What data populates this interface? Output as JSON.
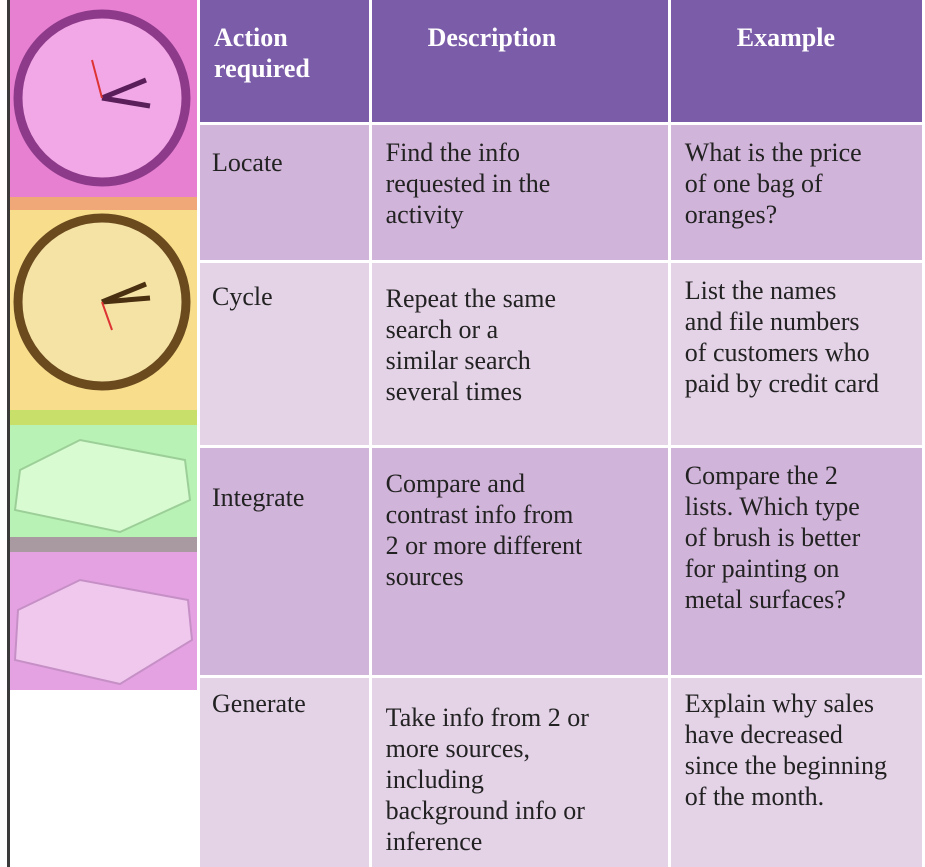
{
  "table": {
    "header": [
      [
        "Action",
        "required"
      ],
      [
        "Description"
      ],
      [
        "Example"
      ]
    ],
    "rows": [
      [
        [
          "Locate"
        ],
        [
          "Find the info",
          "requested in the",
          "activity"
        ],
        [
          "What is the price",
          "of one bag of",
          "oranges?"
        ]
      ],
      [
        [
          "Cycle"
        ],
        [
          "Repeat the same",
          "search or a",
          "similar search",
          "several times"
        ],
        [
          "List the names",
          "and file numbers",
          "of customers who",
          "paid by credit card"
        ]
      ],
      [
        [
          "Integrate"
        ],
        [
          "Compare and",
          "contrast info from",
          "2 or more different",
          "sources"
        ],
        [
          "Compare the 2",
          "lists. Which type",
          "of brush is better",
          "for painting on",
          "metal surfaces?"
        ]
      ],
      [
        [
          "Generate"
        ],
        [
          "Take info from 2 or",
          "more sources,",
          "including",
          "background info or",
          "inference"
        ],
        [
          "Explain why sales",
          "have decreased",
          "since the beginning",
          "of the month."
        ]
      ]
    ]
  }
}
